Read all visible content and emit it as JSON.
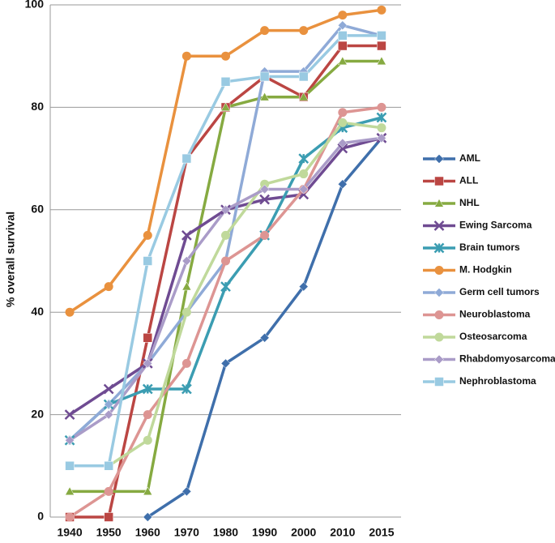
{
  "chart_data": {
    "type": "line",
    "y_label": "% overall survival",
    "categories": [
      "1940",
      "1950",
      "1960",
      "1970",
      "1980",
      "1990",
      "2000",
      "2010",
      "2015"
    ],
    "ylim": [
      0,
      100
    ],
    "yticks": [
      0,
      20,
      40,
      60,
      80,
      100
    ],
    "grid": true,
    "series": [
      {
        "name": "AML",
        "color": "#3f6fab",
        "values": [
          null,
          null,
          0,
          5,
          30,
          35,
          45,
          65,
          74
        ]
      },
      {
        "name": "ALL",
        "color": "#bb4643",
        "values": [
          0,
          0,
          35,
          70,
          80,
          86,
          82,
          92,
          92
        ]
      },
      {
        "name": "NHL",
        "color": "#86aa41",
        "values": [
          5,
          5,
          5,
          45,
          80,
          82,
          82,
          89,
          89
        ]
      },
      {
        "name": "Ewing Sarcoma",
        "color": "#6f4b92",
        "values": [
          20,
          25,
          30,
          55,
          60,
          62,
          63,
          72,
          74
        ]
      },
      {
        "name": "Brain tumors",
        "color": "#3b9db2",
        "values": [
          15,
          22,
          25,
          25,
          45,
          55,
          70,
          76,
          78
        ]
      },
      {
        "name": "M. Hodgkin",
        "color": "#e9913e",
        "values": [
          40,
          45,
          55,
          90,
          90,
          95,
          95,
          98,
          99
        ]
      },
      {
        "name": "Germ cell tumors",
        "color": "#8faad7",
        "values": [
          15,
          22,
          30,
          40,
          50,
          87,
          87,
          96,
          94
        ]
      },
      {
        "name": "Neuroblastoma",
        "color": "#dd9593",
        "values": [
          0,
          5,
          20,
          30,
          50,
          55,
          64,
          79,
          80
        ]
      },
      {
        "name": "Osteosarcoma",
        "color": "#c0d99b",
        "values": [
          null,
          10,
          15,
          40,
          55,
          65,
          67,
          77,
          76
        ]
      },
      {
        "name": "Rhabdomyosarcoma",
        "color": "#aa9cc8",
        "values": [
          15,
          20,
          30,
          50,
          60,
          64,
          64,
          73,
          74
        ]
      },
      {
        "name": "Nephroblastoma",
        "color": "#99cae2",
        "values": [
          10,
          10,
          50,
          70,
          85,
          86,
          86,
          94,
          94
        ]
      }
    ]
  }
}
